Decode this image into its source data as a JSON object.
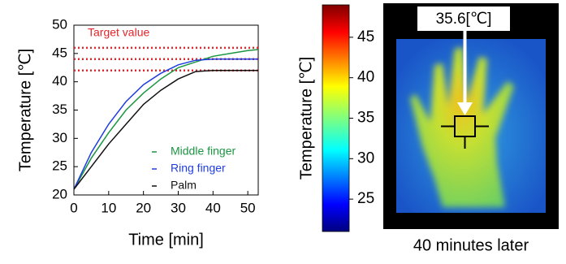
{
  "chart_data": [
    {
      "type": "line",
      "xlabel": "Time [min]",
      "ylabel": "Temperature [℃]",
      "x": [
        0,
        5,
        10,
        15,
        20,
        25,
        30,
        35,
        40,
        45,
        50,
        53
      ],
      "xlim": [
        0,
        53
      ],
      "xticks": [
        0,
        10,
        20,
        30,
        40,
        50
      ],
      "ylim": [
        20,
        50
      ],
      "yticks": [
        20,
        25,
        30,
        35,
        40,
        45,
        50
      ],
      "series": [
        {
          "name": "Middle finger",
          "color": "#1a9641",
          "values": [
            21,
            26.5,
            31,
            35,
            38,
            40.5,
            42.5,
            43.5,
            44.5,
            45,
            45.5,
            45.7
          ]
        },
        {
          "name": "Ring finger",
          "color": "#1f3de0",
          "values": [
            21,
            27.5,
            32.5,
            36.5,
            39.5,
            41.5,
            43,
            43.8,
            44,
            44,
            44,
            44
          ]
        },
        {
          "name": "Palm",
          "color": "#111111",
          "values": [
            21,
            25,
            29,
            32.5,
            36,
            38.5,
            40.5,
            41.8,
            42,
            42,
            42,
            42
          ]
        }
      ],
      "target_lines": {
        "label": "Target value",
        "color": "#e3262b",
        "values": [
          42,
          44,
          46
        ]
      }
    },
    {
      "type": "heatmap",
      "ylabel": "Temperature [℃]",
      "ylim": [
        21,
        49
      ],
      "yticks": [
        25,
        30,
        35,
        40,
        45
      ],
      "annotation": "35.6[℃]",
      "caption": "40 minutes later"
    }
  ]
}
